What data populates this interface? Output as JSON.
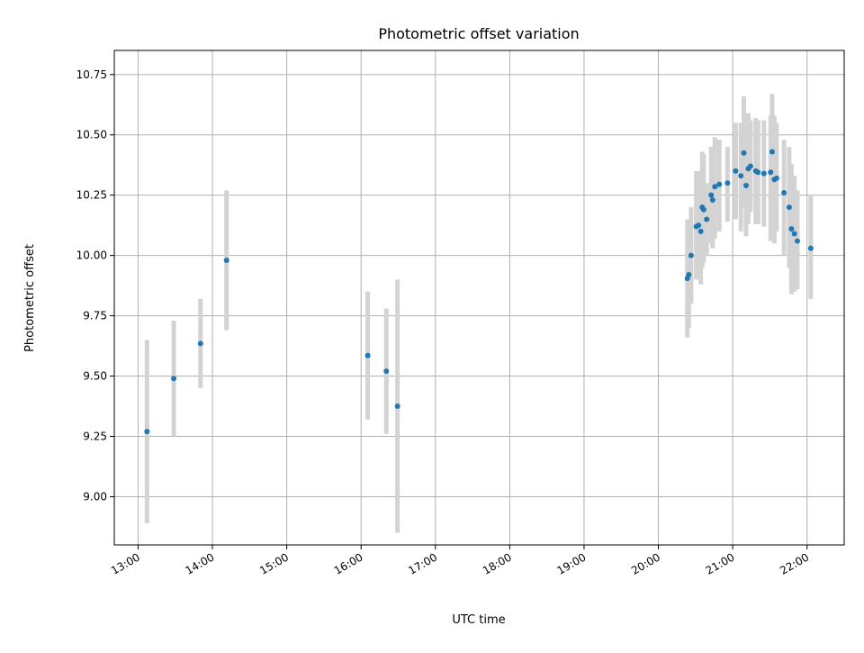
{
  "chart_data": {
    "type": "scatter",
    "title": "Photometric offset variation",
    "xlabel": "UTC time",
    "ylabel": "Photometric offset",
    "x_unit": "UTC time of day (hours)",
    "xlim": [
      12.68,
      22.5
    ],
    "ylim": [
      8.8,
      10.85
    ],
    "grid": true,
    "x_ticks": [
      {
        "value": 13,
        "label": "13:00"
      },
      {
        "value": 14,
        "label": "14:00"
      },
      {
        "value": 15,
        "label": "15:00"
      },
      {
        "value": 16,
        "label": "16:00"
      },
      {
        "value": 17,
        "label": "17:00"
      },
      {
        "value": 18,
        "label": "18:00"
      },
      {
        "value": 19,
        "label": "19:00"
      },
      {
        "value": 20,
        "label": "20:00"
      },
      {
        "value": 21,
        "label": "21:00"
      },
      {
        "value": 22,
        "label": "22:00"
      }
    ],
    "y_ticks": [
      {
        "value": 9.0,
        "label": "9.00"
      },
      {
        "value": 9.25,
        "label": "9.25"
      },
      {
        "value": 9.5,
        "label": "9.50"
      },
      {
        "value": 9.75,
        "label": "9.75"
      },
      {
        "value": 10.0,
        "label": "10.00"
      },
      {
        "value": 10.25,
        "label": "10.25"
      },
      {
        "value": 10.5,
        "label": "10.50"
      },
      {
        "value": 10.75,
        "label": "10.75"
      }
    ],
    "colors": {
      "points": "#1f77b4",
      "errorbars": "#d3d3d3",
      "grid": "#b0b0b0"
    },
    "points": [
      {
        "x": 13.12,
        "y": 9.27,
        "ylow": 8.89,
        "yhigh": 9.65
      },
      {
        "x": 13.48,
        "y": 9.49,
        "ylow": 9.25,
        "yhigh": 9.73
      },
      {
        "x": 13.84,
        "y": 9.635,
        "ylow": 9.45,
        "yhigh": 9.82
      },
      {
        "x": 14.19,
        "y": 9.98,
        "ylow": 9.69,
        "yhigh": 10.27
      },
      {
        "x": 16.09,
        "y": 9.585,
        "ylow": 9.32,
        "yhigh": 9.85
      },
      {
        "x": 16.34,
        "y": 9.52,
        "ylow": 9.26,
        "yhigh": 9.78
      },
      {
        "x": 16.49,
        "y": 9.375,
        "ylow": 8.85,
        "yhigh": 9.9
      },
      {
        "x": 20.39,
        "y": 9.905,
        "ylow": 9.66,
        "yhigh": 10.15
      },
      {
        "x": 20.41,
        "y": 9.92,
        "ylow": 9.7,
        "yhigh": 10.14
      },
      {
        "x": 20.44,
        "y": 10.0,
        "ylow": 9.8,
        "yhigh": 10.2
      },
      {
        "x": 20.51,
        "y": 10.12,
        "ylow": 9.9,
        "yhigh": 10.35
      },
      {
        "x": 20.54,
        "y": 10.125,
        "ylow": 9.92,
        "yhigh": 10.33
      },
      {
        "x": 20.57,
        "y": 10.1,
        "ylow": 9.88,
        "yhigh": 10.35
      },
      {
        "x": 20.59,
        "y": 10.2,
        "ylow": 9.95,
        "yhigh": 10.43
      },
      {
        "x": 20.61,
        "y": 10.19,
        "ylow": 9.97,
        "yhigh": 10.42
      },
      {
        "x": 20.65,
        "y": 10.15,
        "ylow": 10.0,
        "yhigh": 10.3
      },
      {
        "x": 20.71,
        "y": 10.25,
        "ylow": 10.05,
        "yhigh": 10.45
      },
      {
        "x": 20.73,
        "y": 10.23,
        "ylow": 10.03,
        "yhigh": 10.45
      },
      {
        "x": 20.76,
        "y": 10.285,
        "ylow": 10.07,
        "yhigh": 10.49
      },
      {
        "x": 20.82,
        "y": 10.295,
        "ylow": 10.1,
        "yhigh": 10.48
      },
      {
        "x": 20.93,
        "y": 10.3,
        "ylow": 10.14,
        "yhigh": 10.45
      },
      {
        "x": 21.04,
        "y": 10.35,
        "ylow": 10.15,
        "yhigh": 10.55
      },
      {
        "x": 21.11,
        "y": 10.33,
        "ylow": 10.1,
        "yhigh": 10.55
      },
      {
        "x": 21.15,
        "y": 10.425,
        "ylow": 10.2,
        "yhigh": 10.66
      },
      {
        "x": 21.18,
        "y": 10.29,
        "ylow": 10.08,
        "yhigh": 10.5
      },
      {
        "x": 21.21,
        "y": 10.36,
        "ylow": 10.13,
        "yhigh": 10.59
      },
      {
        "x": 21.24,
        "y": 10.37,
        "ylow": 10.18,
        "yhigh": 10.56
      },
      {
        "x": 21.31,
        "y": 10.35,
        "ylow": 10.13,
        "yhigh": 10.57
      },
      {
        "x": 21.34,
        "y": 10.345,
        "ylow": 10.13,
        "yhigh": 10.56
      },
      {
        "x": 21.42,
        "y": 10.34,
        "ylow": 10.12,
        "yhigh": 10.56
      },
      {
        "x": 21.51,
        "y": 10.345,
        "ylow": 10.06,
        "yhigh": 10.58
      },
      {
        "x": 21.53,
        "y": 10.43,
        "ylow": 10.19,
        "yhigh": 10.67
      },
      {
        "x": 21.56,
        "y": 10.315,
        "ylow": 10.05,
        "yhigh": 10.58
      },
      {
        "x": 21.59,
        "y": 10.32,
        "ylow": 10.1,
        "yhigh": 10.55
      },
      {
        "x": 21.69,
        "y": 10.26,
        "ylow": 10.0,
        "yhigh": 10.48
      },
      {
        "x": 21.76,
        "y": 10.2,
        "ylow": 9.95,
        "yhigh": 10.45
      },
      {
        "x": 21.79,
        "y": 10.11,
        "ylow": 9.84,
        "yhigh": 10.38
      },
      {
        "x": 21.83,
        "y": 10.09,
        "ylow": 9.85,
        "yhigh": 10.33
      },
      {
        "x": 21.87,
        "y": 10.06,
        "ylow": 9.86,
        "yhigh": 10.27
      },
      {
        "x": 22.05,
        "y": 10.03,
        "ylow": 9.82,
        "yhigh": 10.25
      }
    ]
  }
}
